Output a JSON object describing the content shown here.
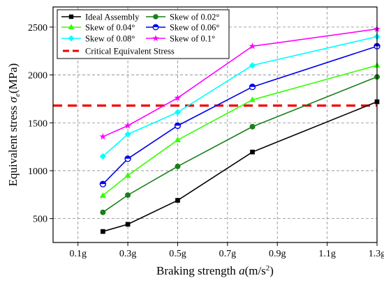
{
  "chart_data": {
    "type": "line",
    "title": "",
    "xlabel": "Braking strength a(m/s²)",
    "ylabel": "Equivalent stress σe(MPa)",
    "xlabel_parts": {
      "main": "Braking strength ",
      "var": "a",
      "unit_open": "(m/s",
      "sup": "2",
      "unit_close": ")"
    },
    "ylabel_parts": {
      "main": "Equivalent stress ",
      "var": "σ",
      "sub": "e",
      "unit": "(MPa)"
    },
    "x_ticks": [
      {
        "value": 0.1,
        "label": "0.1g"
      },
      {
        "value": 0.3,
        "label": "0.3g"
      },
      {
        "value": 0.5,
        "label": "0.5g"
      },
      {
        "value": 0.7,
        "label": "0.7g"
      },
      {
        "value": 0.9,
        "label": "0.9g"
      },
      {
        "value": 1.1,
        "label": "1.1g"
      },
      {
        "value": 1.3,
        "label": "1.3g"
      }
    ],
    "y_ticks": [
      {
        "value": 500,
        "label": "500"
      },
      {
        "value": 1000,
        "label": "1000"
      },
      {
        "value": 1500,
        "label": "1500"
      },
      {
        "value": 2000,
        "label": "2000"
      },
      {
        "value": 2500,
        "label": "2500"
      }
    ],
    "xlim": [
      0.0,
      1.3
    ],
    "ylim": [
      250,
      2710
    ],
    "grid": true,
    "legend_position": "top-left",
    "x": [
      0.2,
      0.3,
      0.5,
      0.8,
      1.3
    ],
    "series": [
      {
        "name": "Ideal Assembly",
        "color": "#000000",
        "marker": "square",
        "values": [
          365,
          440,
          690,
          1195,
          1720
        ]
      },
      {
        "name": "Skew of 0.02°",
        "color": "#1a7f1a",
        "marker": "circle",
        "values": [
          565,
          745,
          1045,
          1460,
          1980
        ]
      },
      {
        "name": "Skew of 0.04°",
        "color": "#33ff00",
        "marker": "triangle-up",
        "values": [
          740,
          950,
          1320,
          1740,
          2100
        ]
      },
      {
        "name": "Skew of 0.06°",
        "color": "#0000ee",
        "marker": "half-circle",
        "values": [
          860,
          1125,
          1470,
          1875,
          2300
        ]
      },
      {
        "name": "Skew of 0.08°",
        "color": "#00ffff",
        "marker": "diamond",
        "values": [
          1150,
          1380,
          1610,
          2100,
          2400
        ]
      },
      {
        "name": "Skew of 0.1°",
        "color": "#ff00ff",
        "marker": "star",
        "values": [
          1355,
          1470,
          1760,
          2300,
          2480
        ]
      }
    ],
    "reference_lines": [
      {
        "name": "Critical Equivalent Stress",
        "orientation": "horizontal",
        "value": 1680,
        "color": "#ee0000",
        "style": "dashed"
      }
    ],
    "legend_order": [
      "Ideal Assembly",
      "Skew of 0.02°",
      "Skew of 0.04°",
      "Skew of 0.06°",
      "Skew of 0.08°",
      "Skew of 0.1°",
      "Critical Equivalent Stress"
    ]
  }
}
